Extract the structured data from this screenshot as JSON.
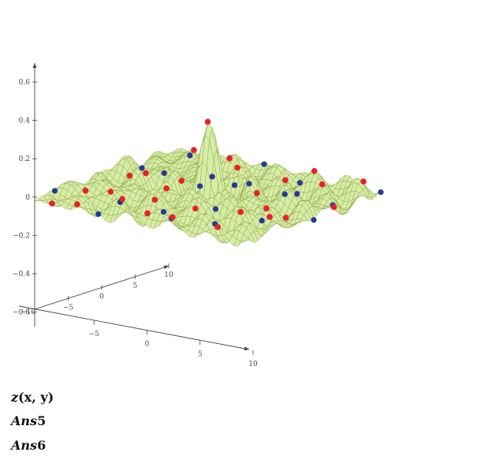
{
  "chart_data": {
    "type": "surface3d",
    "function": "z(x, y)",
    "z_ticks": [
      "0.6",
      "0.4",
      "0.2",
      "0",
      "−0.2",
      "−0.4",
      "−0.6"
    ],
    "x_ticks": [
      "−5",
      "0",
      "5",
      "10"
    ],
    "y_ticks": [
      "−5",
      "0",
      "5",
      "10"
    ],
    "x_range": [
      -10,
      10
    ],
    "y_range": [
      -10,
      10
    ],
    "z_range": [
      -0.6,
      0.6
    ],
    "colors": {
      "surface": "#d7eca7",
      "mesh": "#7d9a2c",
      "maxima": "#e8202a",
      "minima": "#233a96",
      "axis": "#444444"
    },
    "maxima_markers": [
      [
        -9,
        -9
      ],
      [
        -6,
        -10
      ],
      [
        -3,
        -8
      ],
      [
        0,
        -9
      ],
      [
        3,
        -10
      ],
      [
        6,
        -8
      ],
      [
        -9,
        -4
      ],
      [
        -6,
        -5
      ],
      [
        -2,
        -3
      ],
      [
        2,
        -5
      ],
      [
        5,
        -3
      ],
      [
        9,
        -5
      ],
      [
        -8,
        1
      ],
      [
        -5,
        0
      ],
      [
        0,
        0
      ],
      [
        4,
        1
      ],
      [
        8,
        -1
      ],
      [
        -9,
        5
      ],
      [
        -5,
        4
      ],
      [
        -1,
        6
      ],
      [
        3,
        4
      ],
      [
        7,
        6
      ],
      [
        10,
        3
      ],
      [
        -7,
        9
      ],
      [
        -3,
        8
      ],
      [
        1,
        10
      ],
      [
        5,
        8
      ],
      [
        9,
        9
      ]
    ],
    "minima_markers": [
      [
        -10,
        -7
      ],
      [
        -4,
        -10
      ],
      [
        1,
        -7
      ],
      [
        7,
        -10
      ],
      [
        -7,
        -2
      ],
      [
        -1,
        -5
      ],
      [
        2,
        -2
      ],
      [
        7,
        -3
      ],
      [
        -6,
        3
      ],
      [
        -2,
        2
      ],
      [
        2,
        3
      ],
      [
        6,
        2
      ],
      [
        10,
        0
      ],
      [
        -10,
        6
      ],
      [
        -4,
        7
      ],
      [
        0,
        4
      ],
      [
        4,
        7
      ],
      [
        8,
        6
      ],
      [
        -8,
        10
      ],
      [
        -1,
        10
      ],
      [
        3,
        9
      ],
      [
        10,
        10
      ]
    ]
  },
  "legend": {
    "line1_fn": "z",
    "line1_args": "(x, y)",
    "line2_name": "Ans",
    "line2_num": "5",
    "line3_name": "Ans",
    "line3_num": "6"
  }
}
